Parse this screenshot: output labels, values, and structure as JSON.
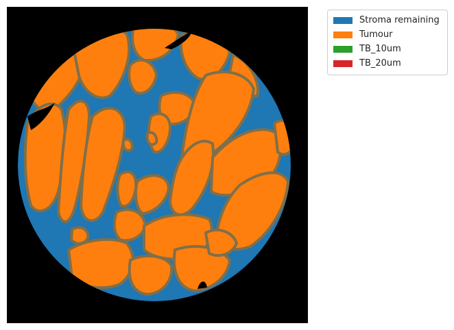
{
  "figure": {
    "legend": [
      {
        "label": "Stroma remaining",
        "color": "#1f77b4"
      },
      {
        "label": "Tumour",
        "color": "#ff7f0e"
      },
      {
        "label": "TB_10um",
        "color": "#2ca02c"
      },
      {
        "label": "TB_20um",
        "color": "#d62728"
      }
    ],
    "background_color": "#000000",
    "boundary_color": "#7f6f4a"
  }
}
